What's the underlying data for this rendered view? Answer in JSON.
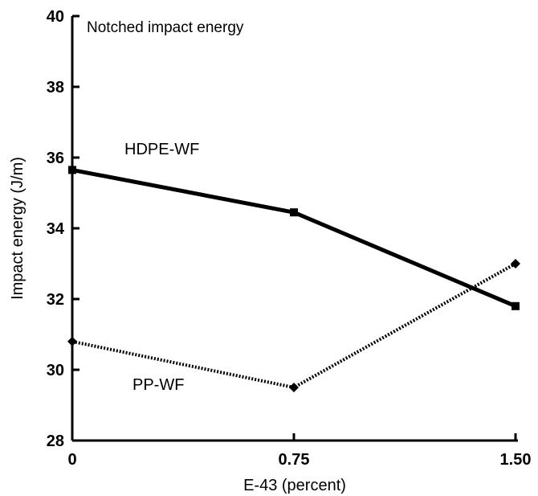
{
  "chart_data": {
    "type": "line",
    "title": "Notched impact energy",
    "xlabel": "E-43 (percent)",
    "ylabel": "Impact energy (J/m)",
    "x": [
      0,
      0.75,
      1.5
    ],
    "x_tick_labels": [
      "0",
      "0.75",
      "1.50"
    ],
    "ylim": [
      28,
      40
    ],
    "y_ticks": [
      28,
      30,
      32,
      34,
      36,
      38,
      40
    ],
    "y_tick_labels": [
      "28",
      "30",
      "32",
      "34",
      "36",
      "38",
      "40"
    ],
    "grid": false,
    "legend": "none",
    "series": [
      {
        "name": "HDPE-WF",
        "values": [
          35.65,
          34.45,
          31.8
        ],
        "marker": "square",
        "line_style": "solid",
        "color": "#000000"
      },
      {
        "name": "PP-WF",
        "values": [
          30.8,
          29.5,
          33.0
        ],
        "marker": "diamond",
        "line_style": "dotted",
        "color": "#000000"
      }
    ]
  }
}
